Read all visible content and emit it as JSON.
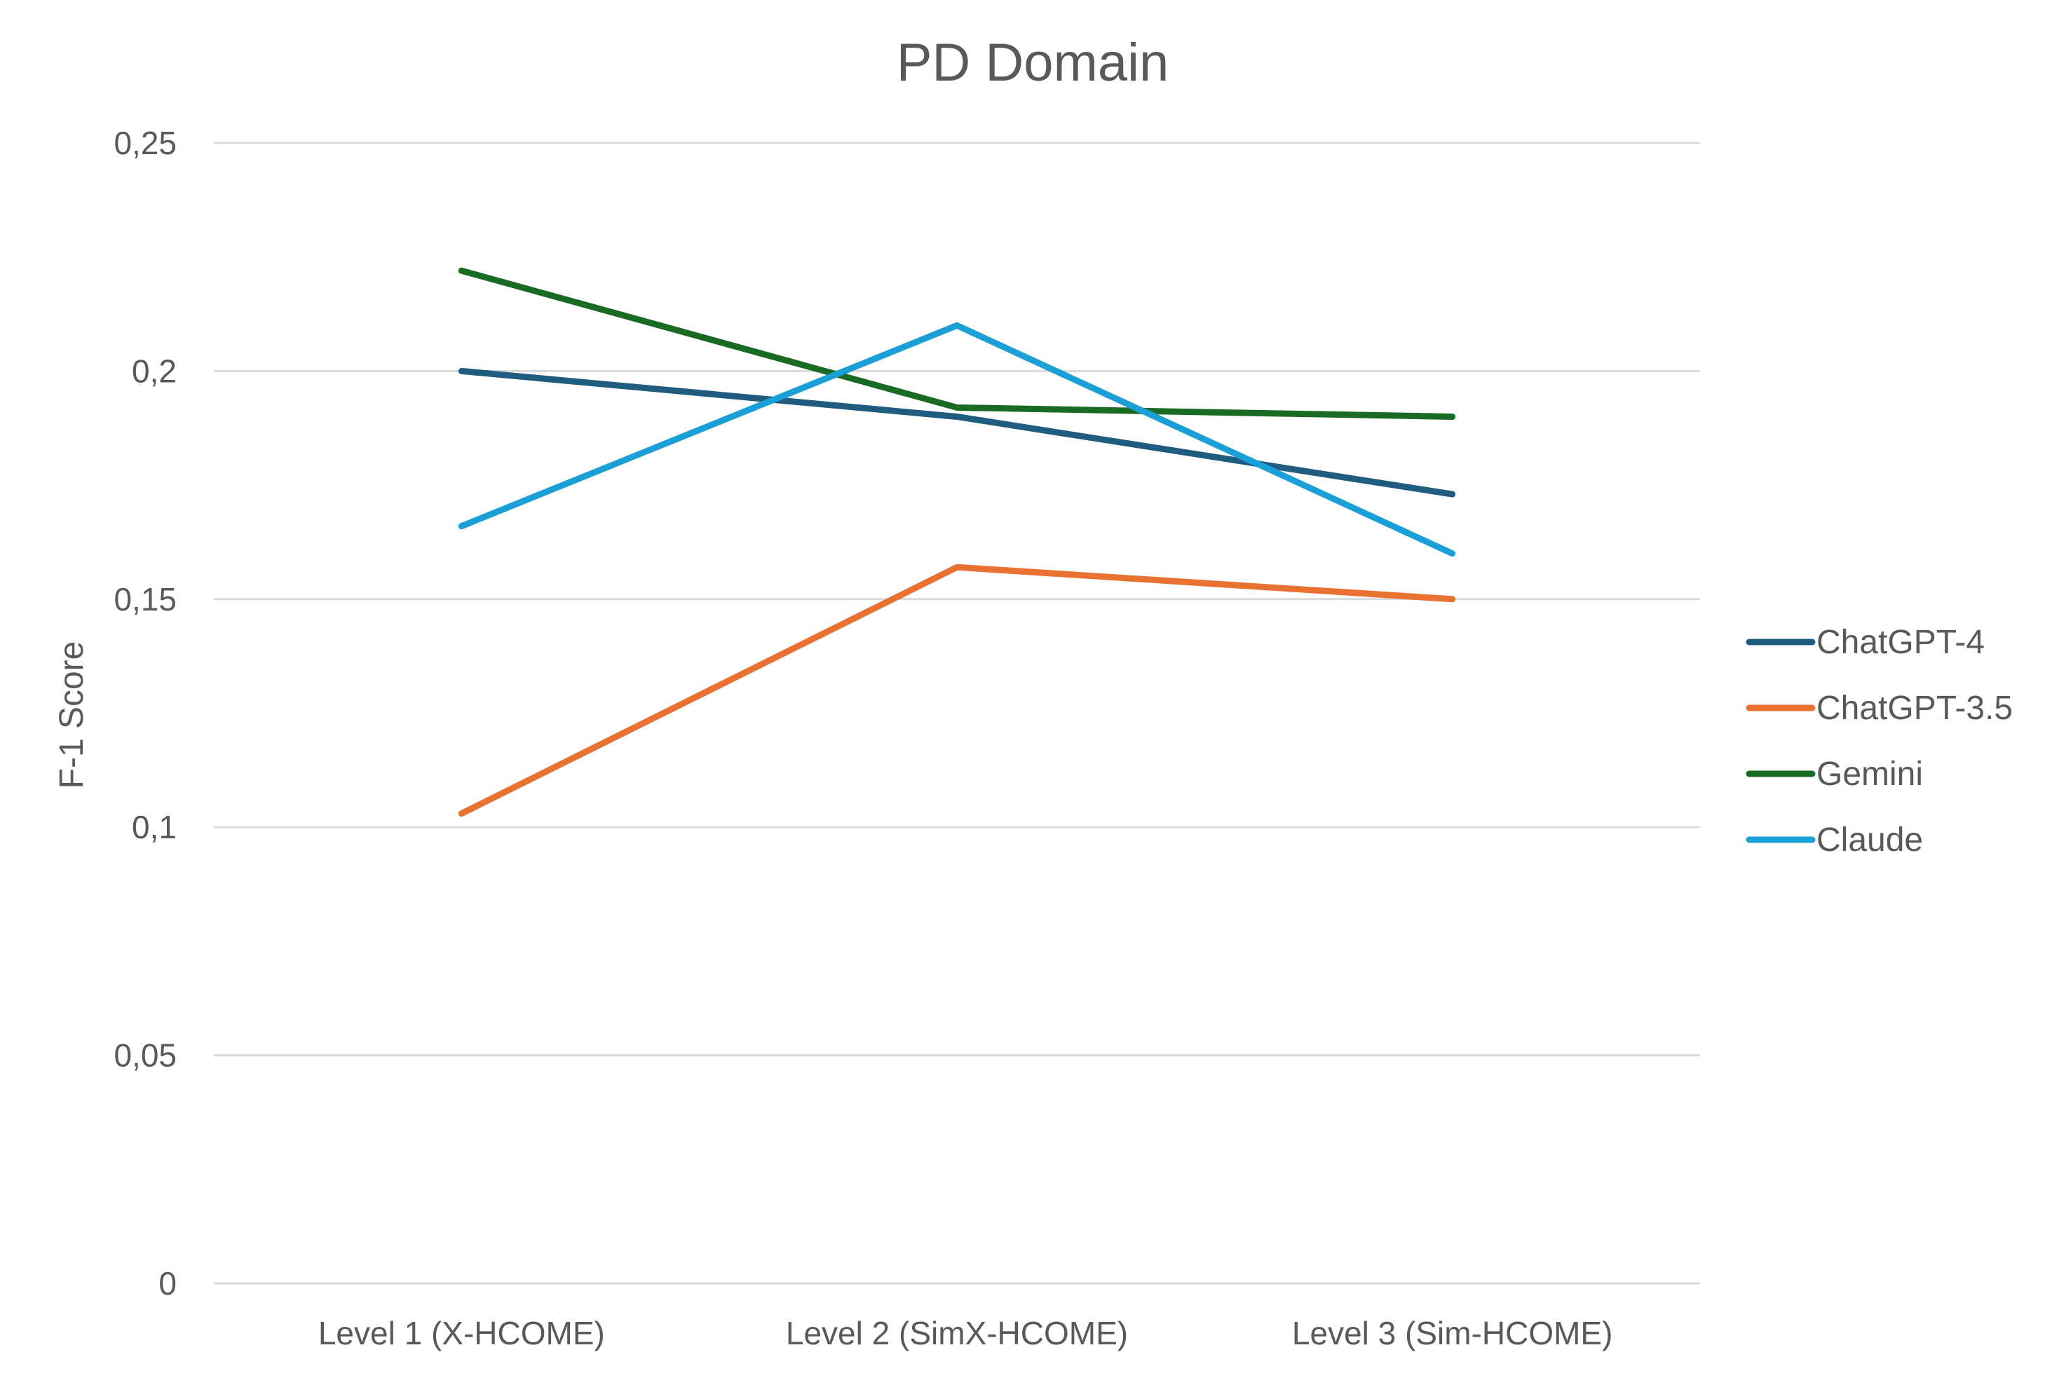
{
  "chart_data": {
    "type": "line",
    "title": "PD Domain",
    "xlabel": "",
    "ylabel": "F-1 Score",
    "categories": [
      "Level 1 (X-HCOME)",
      "Level 2 (SimX-HCOME)",
      "Level 3 (Sim-HCOME)"
    ],
    "ylim": [
      0,
      0.25
    ],
    "yticks": [
      0,
      0.05,
      0.1,
      0.15,
      0.2,
      0.25
    ],
    "ytick_labels": [
      "0",
      "0,05",
      "0,1",
      "0,15",
      "0,2",
      "0,25"
    ],
    "grid": true,
    "legend_position": "right",
    "series": [
      {
        "name": "ChatGPT-4",
        "values": [
          0.2,
          0.19,
          0.173
        ],
        "color": "#1f5c80"
      },
      {
        "name": "ChatGPT-3.5",
        "values": [
          0.103,
          0.157,
          0.15
        ],
        "color": "#e97132"
      },
      {
        "name": "Gemini",
        "values": [
          0.222,
          0.192,
          0.19
        ],
        "color": "#196b24"
      },
      {
        "name": "Claude",
        "values": [
          0.166,
          0.21,
          0.16
        ],
        "color": "#1a9fd6"
      }
    ]
  }
}
